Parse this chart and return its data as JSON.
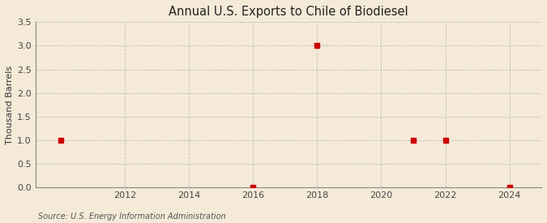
{
  "title": "Annual U.S. Exports to Chile of Biodiesel",
  "ylabel": "Thousand Barrels",
  "source": "Source: U.S. Energy Information Administration",
  "years": [
    2010,
    2016,
    2018,
    2021,
    2022,
    2024
  ],
  "values": [
    1.0,
    0.0,
    3.0,
    1.0,
    1.0,
    0.0
  ],
  "marker_color": "#cc0000",
  "marker_size": 4,
  "background_color": "#f5ead8",
  "grid_color": "#bbbbbb",
  "xlim": [
    2010.0,
    2025.0
  ],
  "ylim": [
    0.0,
    3.5
  ],
  "yticks": [
    0.0,
    0.5,
    1.0,
    1.5,
    2.0,
    2.5,
    3.0,
    3.5
  ],
  "xticks": [
    2012,
    2014,
    2016,
    2018,
    2020,
    2022,
    2024
  ],
  "title_fontsize": 10.5,
  "tick_fontsize": 8,
  "ylabel_fontsize": 8,
  "source_fontsize": 7
}
